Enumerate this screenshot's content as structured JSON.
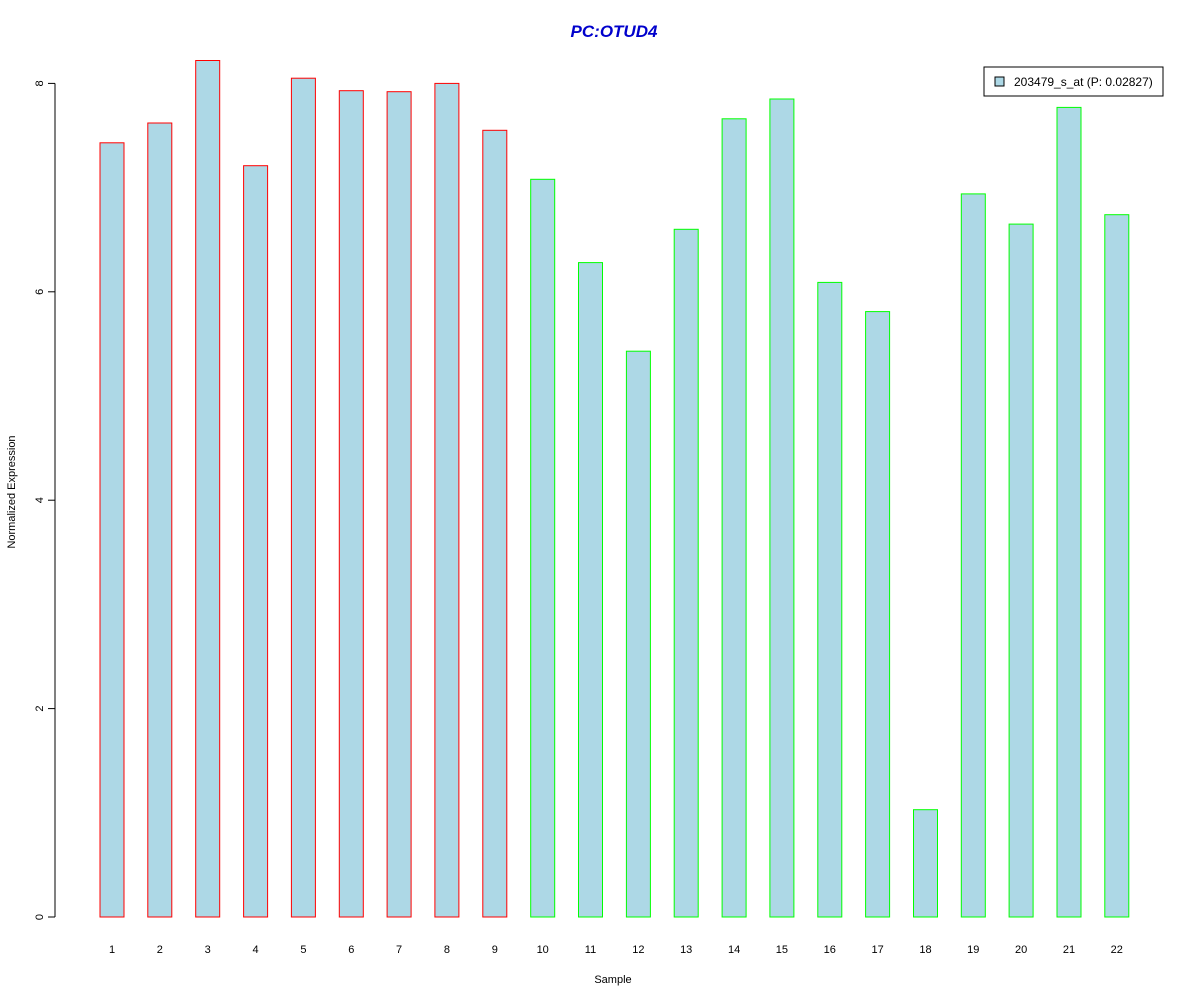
{
  "chart_data": {
    "type": "bar",
    "title": "PC:OTUD4",
    "xlabel": "Sample",
    "ylabel": "Normalized Expression",
    "categories": [
      "1",
      "2",
      "3",
      "4",
      "5",
      "6",
      "7",
      "8",
      "9",
      "10",
      "11",
      "12",
      "13",
      "14",
      "15",
      "16",
      "17",
      "18",
      "19",
      "20",
      "21",
      "22"
    ],
    "series": [
      {
        "name": "203479_s_at (P: 0.02827)",
        "values": [
          7.43,
          7.62,
          8.22,
          7.21,
          8.05,
          7.93,
          7.92,
          8.0,
          7.55,
          7.08,
          6.28,
          5.43,
          6.6,
          7.66,
          7.85,
          6.09,
          5.81,
          1.03,
          6.94,
          6.65,
          7.77,
          6.74
        ]
      }
    ],
    "ylim": [
      0,
      8.22
    ],
    "yticks": [
      0,
      2,
      4,
      6,
      8
    ],
    "group_border_colors": [
      "#ff0000",
      "#ff0000",
      "#ff0000",
      "#ff0000",
      "#ff0000",
      "#ff0000",
      "#ff0000",
      "#ff0000",
      "#ff0000",
      "#00ff00",
      "#00ff00",
      "#00ff00",
      "#00ff00",
      "#00ff00",
      "#00ff00",
      "#00ff00",
      "#00ff00",
      "#00ff00",
      "#00ff00",
      "#00ff00",
      "#00ff00",
      "#00ff00"
    ],
    "bar_fill": "#add8e6",
    "title_color": "#0000cc",
    "legend_position": "top-right",
    "grid": false
  }
}
